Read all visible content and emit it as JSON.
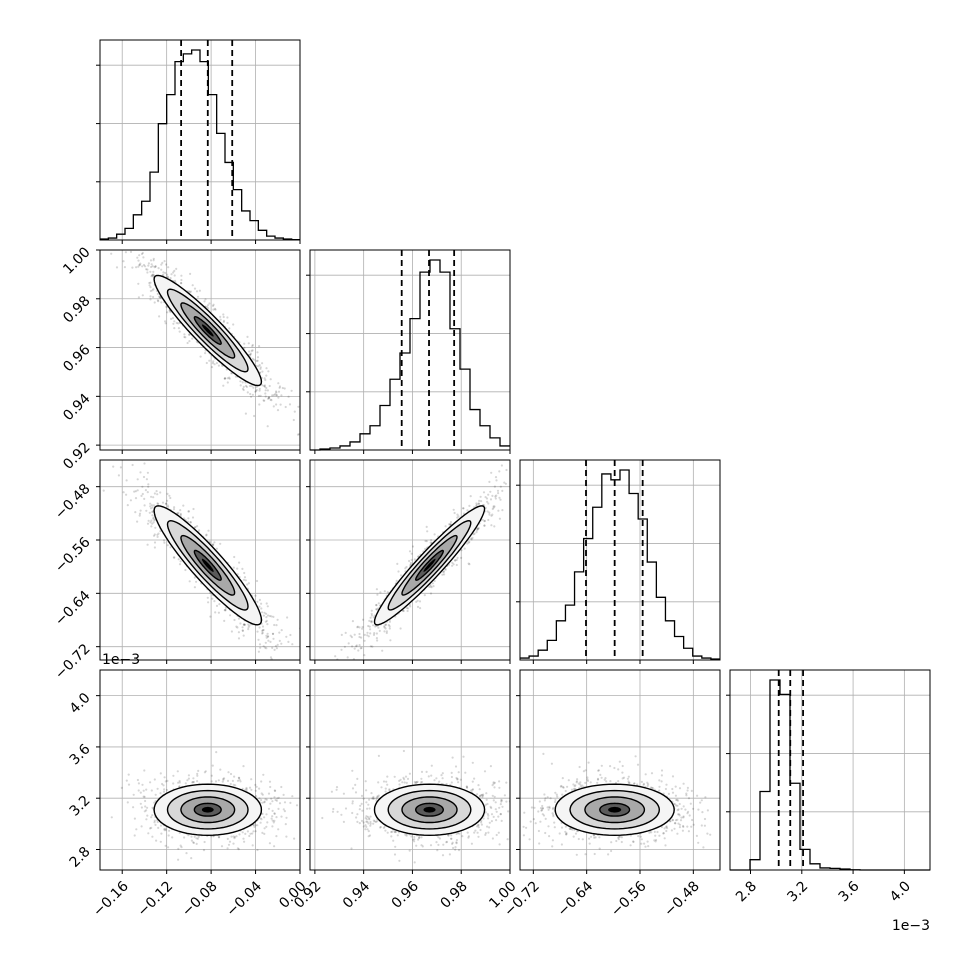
{
  "chart_data": {
    "type": "corner",
    "title": "",
    "parameters": [
      {
        "index": 0,
        "range": [
          -0.18,
          0.0
        ],
        "ticks": [
          -0.16,
          -0.12,
          -0.08,
          -0.04,
          0.0
        ],
        "tick_labels": [
          "−0.16",
          "−0.12",
          "−0.08",
          "−0.04",
          "0.00"
        ],
        "quantiles": [
          -0.107,
          -0.083,
          -0.061
        ],
        "hist": [
          0.005,
          0.01,
          0.03,
          0.06,
          0.13,
          0.2,
          0.35,
          0.6,
          0.75,
          0.92,
          0.96,
          0.98,
          0.92,
          0.75,
          0.55,
          0.4,
          0.26,
          0.15,
          0.1,
          0.05,
          0.02,
          0.01,
          0.005,
          0.002
        ]
      },
      {
        "index": 1,
        "range": [
          0.918,
          1.0
        ],
        "ticks": [
          0.92,
          0.94,
          0.96,
          0.98,
          1.0
        ],
        "tick_labels": [
          "0.92",
          "0.94",
          "0.96",
          "0.98",
          "1.00"
        ],
        "quantiles": [
          0.9556,
          0.9668,
          0.9771
        ],
        "hist": [
          0.0,
          0.005,
          0.01,
          0.02,
          0.04,
          0.08,
          0.12,
          0.22,
          0.35,
          0.48,
          0.65,
          0.88,
          0.94,
          0.88,
          0.6,
          0.4,
          0.2,
          0.12,
          0.06,
          0.02
        ]
      },
      {
        "index": 2,
        "range": [
          -0.74,
          -0.44
        ],
        "ticks": [
          -0.72,
          -0.64,
          -0.56,
          -0.48
        ],
        "tick_labels": [
          "−0.72",
          "−0.64",
          "−0.56",
          "−0.48"
        ],
        "quantiles": [
          -0.641,
          -0.598,
          -0.556
        ],
        "hist": [
          0.01,
          0.02,
          0.05,
          0.1,
          0.2,
          0.28,
          0.45,
          0.62,
          0.78,
          0.95,
          0.92,
          0.97,
          0.85,
          0.72,
          0.5,
          0.32,
          0.2,
          0.12,
          0.06,
          0.02,
          0.01,
          0.005
        ]
      },
      {
        "index": 3,
        "range": [
          2.64,
          4.2
        ],
        "ticks": [
          2.8,
          3.2,
          3.6,
          4.0
        ],
        "tick_labels": [
          "2.8",
          "3.2",
          "3.6",
          "4.0"
        ],
        "quantiles": [
          3.02,
          3.11,
          3.21
        ],
        "hist": [
          0.0,
          0.0,
          0.05,
          0.38,
          0.92,
          0.85,
          0.42,
          0.1,
          0.03,
          0.01,
          0.008,
          0.005,
          0.001,
          0.0,
          0.0,
          0.0,
          0.0,
          0.0,
          0.0,
          0.0
        ],
        "offset_label": "1e−3"
      }
    ],
    "pairs": [
      {
        "x": 0,
        "y": 1,
        "mean": [
          -0.083,
          0.967
        ],
        "corr": -0.93
      },
      {
        "x": 0,
        "y": 2,
        "mean": [
          -0.083,
          -0.598
        ],
        "corr": -0.92
      },
      {
        "x": 1,
        "y": 2,
        "mean": [
          0.967,
          -0.598
        ],
        "corr": 0.95
      },
      {
        "x": 0,
        "y": 3,
        "mean": [
          -0.083,
          3.11
        ],
        "corr": 0.0
      },
      {
        "x": 1,
        "y": 3,
        "mean": [
          0.967,
          3.11
        ],
        "corr": 0.0
      },
      {
        "x": 2,
        "y": 3,
        "mean": [
          -0.598,
          3.11
        ],
        "corr": 0.0
      }
    ],
    "grid": true
  }
}
